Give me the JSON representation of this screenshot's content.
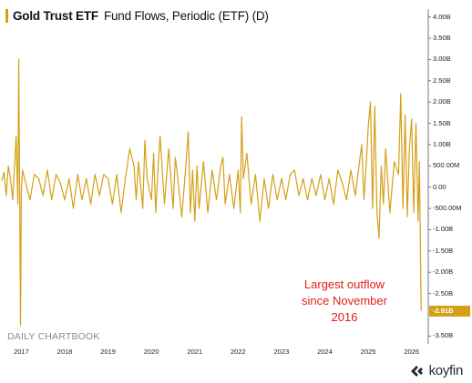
{
  "title": {
    "name": "Gold Trust ETF",
    "subtitle": "Fund Flows, Periodic (ETF) (D)"
  },
  "colors": {
    "series": "#d4a017",
    "annotation": "#e0201b",
    "axis": "#555555",
    "source": "#8a8a8a",
    "brand": "#1f2a36"
  },
  "annotation": {
    "lines": [
      "Largest outflow",
      "since November",
      "2016"
    ]
  },
  "source_label": "DAILY CHARTBOOK",
  "brand": {
    "name": "koyfin",
    "icon": "koyfin-logo-icon"
  },
  "last_value_label": "-2.91B",
  "chart_data": {
    "type": "line",
    "title": "Gold Trust ETF Fund Flows, Periodic (ETF) (D)",
    "xlabel": "",
    "ylabel": "",
    "x_range": [
      2016.55,
      2026.3
    ],
    "ylim": [
      -3.6,
      4.1
    ],
    "grid": false,
    "legend": "none",
    "y_ticks": [
      {
        "v": 4.0,
        "label": "4.00B"
      },
      {
        "v": 3.5,
        "label": "3.50B"
      },
      {
        "v": 3.0,
        "label": "3.00B"
      },
      {
        "v": 2.5,
        "label": "2.50B"
      },
      {
        "v": 2.0,
        "label": "2.00B"
      },
      {
        "v": 1.5,
        "label": "1.50B"
      },
      {
        "v": 1.0,
        "label": "1.00B"
      },
      {
        "v": 0.5,
        "label": "500.00M"
      },
      {
        "v": 0.0,
        "label": "0.00"
      },
      {
        "v": -0.5,
        "label": "-500.00M"
      },
      {
        "v": -1.0,
        "label": "-1.00B"
      },
      {
        "v": -1.5,
        "label": "-1.50B"
      },
      {
        "v": -2.0,
        "label": "-2.00B"
      },
      {
        "v": -2.5,
        "label": "-2.50B"
      },
      {
        "v": -3.5,
        "label": "-3.50B"
      }
    ],
    "x_ticks": [
      {
        "v": 2017,
        "label": "2017"
      },
      {
        "v": 2018,
        "label": "2018"
      },
      {
        "v": 2019,
        "label": "2019"
      },
      {
        "v": 2020,
        "label": "2020"
      },
      {
        "v": 2021,
        "label": "2021"
      },
      {
        "v": 2022,
        "label": "2022"
      },
      {
        "v": 2023,
        "label": "2023"
      },
      {
        "v": 2024,
        "label": "2024"
      },
      {
        "v": 2025,
        "label": "2025"
      },
      {
        "v": 2026,
        "label": "2026"
      }
    ],
    "last_value": -2.91,
    "series": [
      {
        "values": [
          [
            2016.55,
            0.15
          ],
          [
            2016.6,
            0.35
          ],
          [
            2016.65,
            -0.2
          ],
          [
            2016.7,
            0.5
          ],
          [
            2016.75,
            0.2
          ],
          [
            2016.8,
            -0.3
          ],
          [
            2016.85,
            0.6
          ],
          [
            2016.88,
            1.2
          ],
          [
            2016.92,
            -0.4
          ],
          [
            2016.94,
            3.0
          ],
          [
            2016.96,
            0.2
          ],
          [
            2016.98,
            -3.25
          ],
          [
            2017.0,
            -0.1
          ],
          [
            2017.03,
            0.4
          ],
          [
            2017.1,
            0.1
          ],
          [
            2017.2,
            -0.3
          ],
          [
            2017.3,
            0.3
          ],
          [
            2017.4,
            0.2
          ],
          [
            2017.5,
            -0.2
          ],
          [
            2017.6,
            0.4
          ],
          [
            2017.7,
            -0.3
          ],
          [
            2017.8,
            0.3
          ],
          [
            2017.9,
            0.1
          ],
          [
            2018.0,
            -0.3
          ],
          [
            2018.1,
            0.2
          ],
          [
            2018.2,
            -0.5
          ],
          [
            2018.3,
            0.3
          ],
          [
            2018.4,
            -0.3
          ],
          [
            2018.5,
            0.2
          ],
          [
            2018.6,
            -0.4
          ],
          [
            2018.7,
            0.3
          ],
          [
            2018.8,
            -0.2
          ],
          [
            2018.9,
            0.3
          ],
          [
            2019.0,
            0.2
          ],
          [
            2019.1,
            -0.4
          ],
          [
            2019.2,
            0.3
          ],
          [
            2019.3,
            -0.6
          ],
          [
            2019.4,
            0.2
          ],
          [
            2019.5,
            0.9
          ],
          [
            2019.6,
            0.5
          ],
          [
            2019.65,
            -0.3
          ],
          [
            2019.7,
            0.6
          ],
          [
            2019.8,
            -0.5
          ],
          [
            2019.85,
            1.1
          ],
          [
            2019.9,
            0.2
          ],
          [
            2020.0,
            -0.3
          ],
          [
            2020.05,
            0.8
          ],
          [
            2020.1,
            -0.6
          ],
          [
            2020.15,
            0.4
          ],
          [
            2020.2,
            1.2
          ],
          [
            2020.3,
            -0.4
          ],
          [
            2020.4,
            0.9
          ],
          [
            2020.5,
            -0.5
          ],
          [
            2020.55,
            0.7
          ],
          [
            2020.6,
            0.3
          ],
          [
            2020.7,
            -0.7
          ],
          [
            2020.8,
            0.6
          ],
          [
            2020.85,
            1.3
          ],
          [
            2020.9,
            -0.6
          ],
          [
            2020.95,
            0.4
          ],
          [
            2021.0,
            -0.8
          ],
          [
            2021.05,
            0.5
          ],
          [
            2021.1,
            -0.5
          ],
          [
            2021.2,
            0.6
          ],
          [
            2021.3,
            -0.6
          ],
          [
            2021.4,
            0.4
          ],
          [
            2021.5,
            -0.3
          ],
          [
            2021.6,
            0.5
          ],
          [
            2021.65,
            0.7
          ],
          [
            2021.7,
            -0.4
          ],
          [
            2021.8,
            0.3
          ],
          [
            2021.9,
            -0.5
          ],
          [
            2022.0,
            0.4
          ],
          [
            2022.05,
            -0.6
          ],
          [
            2022.08,
            1.65
          ],
          [
            2022.12,
            0.2
          ],
          [
            2022.2,
            0.8
          ],
          [
            2022.3,
            -0.4
          ],
          [
            2022.4,
            0.3
          ],
          [
            2022.5,
            -0.8
          ],
          [
            2022.6,
            0.2
          ],
          [
            2022.7,
            -0.5
          ],
          [
            2022.8,
            0.3
          ],
          [
            2022.9,
            -0.3
          ],
          [
            2023.0,
            0.2
          ],
          [
            2023.1,
            -0.3
          ],
          [
            2023.2,
            0.3
          ],
          [
            2023.3,
            0.4
          ],
          [
            2023.4,
            -0.2
          ],
          [
            2023.5,
            0.2
          ],
          [
            2023.6,
            -0.3
          ],
          [
            2023.7,
            0.2
          ],
          [
            2023.8,
            -0.2
          ],
          [
            2023.9,
            0.3
          ],
          [
            2024.0,
            -0.3
          ],
          [
            2024.1,
            0.2
          ],
          [
            2024.2,
            -0.4
          ],
          [
            2024.3,
            0.4
          ],
          [
            2024.4,
            0.1
          ],
          [
            2024.5,
            -0.3
          ],
          [
            2024.6,
            0.4
          ],
          [
            2024.7,
            -0.2
          ],
          [
            2024.8,
            0.6
          ],
          [
            2024.85,
            1.0
          ],
          [
            2024.9,
            -0.3
          ],
          [
            2024.95,
            0.5
          ],
          [
            2025.0,
            1.4
          ],
          [
            2025.05,
            2.0
          ],
          [
            2025.1,
            -0.5
          ],
          [
            2025.15,
            1.9
          ],
          [
            2025.2,
            -0.6
          ],
          [
            2025.25,
            -1.2
          ],
          [
            2025.3,
            0.5
          ],
          [
            2025.35,
            -0.4
          ],
          [
            2025.4,
            0.9
          ],
          [
            2025.5,
            -0.6
          ],
          [
            2025.6,
            0.6
          ],
          [
            2025.7,
            0.3
          ],
          [
            2025.75,
            2.2
          ],
          [
            2025.8,
            -0.5
          ],
          [
            2025.85,
            1.7
          ],
          [
            2025.9,
            -0.7
          ],
          [
            2025.95,
            0.9
          ],
          [
            2026.0,
            1.6
          ],
          [
            2026.05,
            -0.6
          ],
          [
            2026.1,
            1.5
          ],
          [
            2026.15,
            -0.8
          ],
          [
            2026.18,
            0.6
          ],
          [
            2026.22,
            -2.91
          ]
        ]
      }
    ]
  }
}
